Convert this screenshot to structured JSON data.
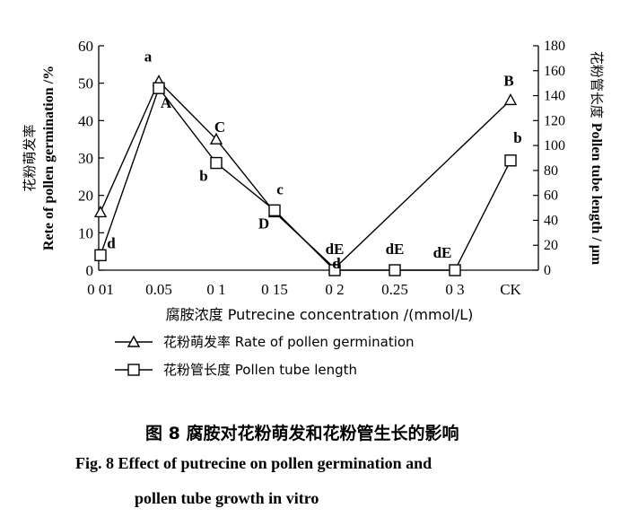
{
  "chart_data": {
    "type": "line",
    "categories": [
      "0 01",
      "0.05",
      "0 1",
      "0 15",
      "0 2",
      "0.25",
      "0 3",
      "CK"
    ],
    "xlabel": "腐胺浓度 Putrecine concentratıon /(mmol/L)",
    "ylabel_left": [
      "花粉萌发率",
      "Rete of pollen germination /%"
    ],
    "ylabel_right": [
      "花粉管长度",
      "Pollen tube length / μm"
    ],
    "ylim_left": [
      0,
      60
    ],
    "yticks_left": [
      "0",
      "10",
      "20",
      "30",
      "40",
      "50",
      "60"
    ],
    "ylim_right": [
      0,
      180
    ],
    "yticks_right": [
      "0",
      "20",
      "40",
      "60",
      "80",
      "100",
      "120",
      "140",
      "160",
      "180"
    ],
    "grid": false,
    "legend_position": "bottom-left",
    "series": [
      {
        "name": "花粉萌发率 Rate of pollen germination",
        "axis": "left",
        "marker": "triangle",
        "x": [
          0,
          1,
          2,
          3,
          4,
          7
        ],
        "values": [
          15.5,
          50.5,
          35,
          15.5,
          0.5,
          45.5
        ],
        "labels": [
          "",
          "a",
          "C",
          "c",
          "d",
          "B"
        ]
      },
      {
        "name": "花粉管长度 Pollen tube length",
        "axis": "right",
        "marker": "square",
        "x": [
          0,
          1,
          2,
          3,
          4,
          5,
          6,
          7
        ],
        "values": [
          12,
          146,
          86,
          48,
          0,
          0,
          0,
          88
        ],
        "labels": [
          "d",
          "A",
          "b",
          "D",
          "dE",
          "dE",
          "dE",
          "b"
        ]
      }
    ]
  },
  "caption": {
    "zh": "图 8   腐胺对花粉萌发和花粉管生长的影响",
    "en_line1": "Fig. 8    Effect of putrecine on pollen germination and",
    "en_line2": "pollen tube growth in vitro"
  }
}
